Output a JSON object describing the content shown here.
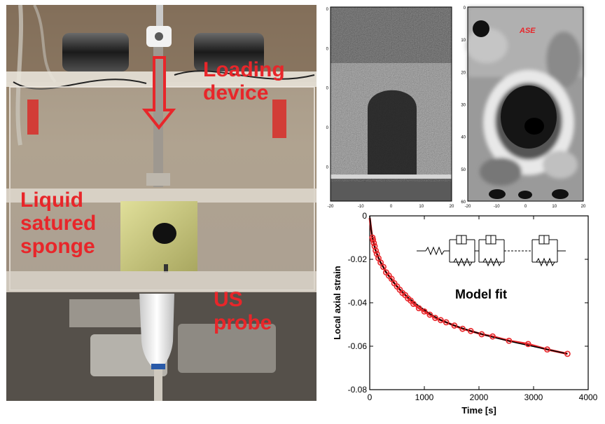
{
  "photo": {
    "label_loading": "Loading\ndevice",
    "label_sponge": "Liquid\nsatured\nsponge",
    "label_probe": "US\nprobe",
    "colors": {
      "label": "#e8262a",
      "arrow": "#e8262a"
    }
  },
  "us_image": {
    "x_ticks": [
      "-20",
      "-10",
      "0",
      "10",
      "20"
    ],
    "y_ticks": [
      "0",
      "0",
      "0",
      "0",
      "0"
    ]
  },
  "ase_image": {
    "badge": "ASE",
    "x_ticks": [
      "-20",
      "-10",
      "0",
      "10",
      "20"
    ],
    "y_ticks": [
      "0",
      "10",
      "20",
      "30",
      "40",
      "50",
      "60"
    ],
    "colors": {
      "badge": "#e8262a"
    }
  },
  "chart_data": {
    "type": "scatter",
    "xlabel": "Time [s]",
    "ylabel": "Local axial strain",
    "annotation": "Model fit",
    "xlim": [
      0,
      4000
    ],
    "ylim": [
      -0.08,
      0
    ],
    "x_ticks": [
      0,
      1000,
      2000,
      3000,
      4000
    ],
    "y_ticks": [
      0,
      -0.02,
      -0.04,
      -0.06,
      -0.08
    ],
    "y_tick_labels": [
      "0",
      "-0.02",
      "-0.04",
      "-0.06",
      "-0.08"
    ],
    "series": [
      {
        "kind": "measured",
        "color": "#e8262a",
        "x": [
          0,
          5,
          10,
          15,
          20,
          25,
          30,
          40,
          50,
          60,
          75,
          90,
          110,
          130,
          160,
          200,
          250,
          300,
          350,
          400,
          450,
          500,
          550,
          600,
          650,
          700,
          750,
          800,
          900,
          1000,
          1100,
          1200,
          1300,
          1400,
          1550,
          1700,
          1850,
          2050,
          2250,
          2550,
          2900,
          3250,
          3620
        ],
        "y": [
          -0.001,
          -0.002,
          -0.003,
          -0.004,
          -0.005,
          -0.006,
          -0.007,
          -0.009,
          -0.01,
          -0.011,
          -0.0125,
          -0.014,
          -0.016,
          -0.0175,
          -0.0195,
          -0.0215,
          -0.0235,
          -0.026,
          -0.0275,
          -0.029,
          -0.031,
          -0.0325,
          -0.034,
          -0.0355,
          -0.0365,
          -0.038,
          -0.039,
          -0.0405,
          -0.0425,
          -0.044,
          -0.0455,
          -0.047,
          -0.048,
          -0.049,
          -0.0505,
          -0.052,
          -0.053,
          -0.0545,
          -0.0555,
          -0.0575,
          -0.059,
          -0.0615,
          -0.0635
        ]
      },
      {
        "kind": "fit",
        "color": "#000000",
        "x": [
          0,
          25,
          50,
          100,
          200,
          300,
          400,
          500,
          700,
          900,
          1100,
          1300,
          1550,
          1850,
          2250,
          2700,
          3200,
          3620
        ],
        "y": [
          0,
          -0.006,
          -0.01,
          -0.0155,
          -0.0215,
          -0.026,
          -0.0295,
          -0.0325,
          -0.0375,
          -0.0415,
          -0.045,
          -0.048,
          -0.0505,
          -0.053,
          -0.0558,
          -0.0585,
          -0.0612,
          -0.0635
        ]
      }
    ]
  }
}
